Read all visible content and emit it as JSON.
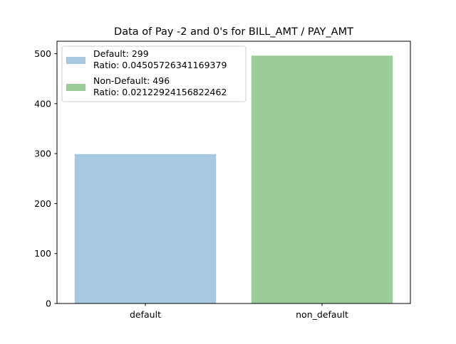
{
  "chart_data": {
    "type": "bar",
    "title": "Data of Pay -2 and 0's for BILL_AMT / PAY_AMT",
    "xlabel": "",
    "ylabel": "",
    "categories": [
      "default",
      "non_default"
    ],
    "values": [
      299,
      496
    ],
    "colors": [
      "#a6c8e0",
      "#9acd99"
    ],
    "ylim": [
      0,
      525
    ],
    "yticks": [
      0,
      100,
      200,
      300,
      400,
      500
    ],
    "grid": false,
    "legend": {
      "position": "top-left",
      "entries": [
        {
          "line1": "Default: 299",
          "line2": "Ratio: 0.04505726341169379",
          "color": "#a6c8e0"
        },
        {
          "line1": "Non-Default: 496",
          "line2": "Ratio: 0.02122924156822462",
          "color": "#9acd99"
        }
      ]
    }
  }
}
